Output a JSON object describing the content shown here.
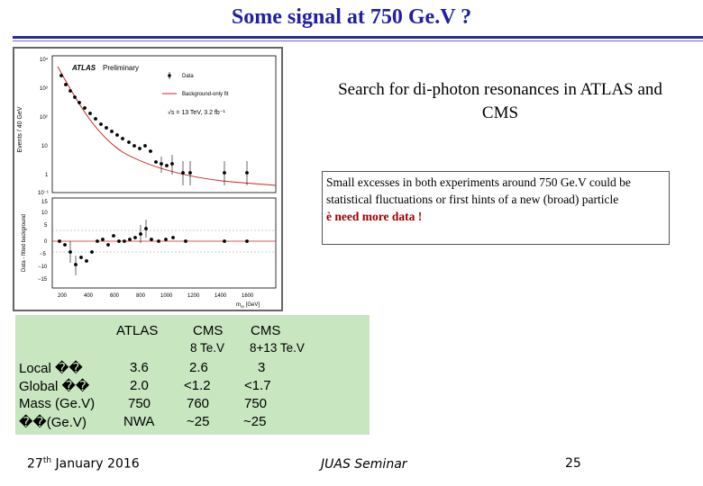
{
  "title": "Some signal at 750 Ge.V ?",
  "subtitle": "Search for di-photon resonances in ATLAS and CMS",
  "excess_text": "Small excesses in both experiments around 750 Ge.V could be statistical fluctuations or first hints of a new (broad) particle",
  "excess_arrow": "è",
  "excess_highlight": "need more data !",
  "table": {
    "headers": [
      "ATLAS",
      "CMS",
      "CMS"
    ],
    "subheaders": [
      "",
      "8 Te.V",
      "8+13 Te.V"
    ],
    "rows": [
      {
        "label": "Local ��",
        "values": [
          "3.6",
          "2.6",
          "3"
        ]
      },
      {
        "label": "Global ��",
        "values": [
          "2.0",
          "<1.2",
          "<1.7"
        ]
      },
      {
        "label": "Mass (Ge.V)",
        "values": [
          "750",
          "760",
          "750"
        ]
      },
      {
        "label": "��(Ge.V)",
        "values": [
          "NWA",
          "~25",
          "~25"
        ]
      }
    ]
  },
  "footer": {
    "date_day": "27",
    "date_suffix": "th",
    "date_rest": " January 2016",
    "seminar": "JUAS Seminar",
    "page": "25"
  },
  "plot": {
    "atlas_label": "ATLAS",
    "prelim_label": "Preliminary",
    "legend_data": "Data",
    "legend_fit": "Background-only fit",
    "energy_label": "√s = 13 TeV, 3.2 fb⁻¹",
    "upper_ylabel": "Events / 40 GeV",
    "lower_ylabel": "Data - fitted background",
    "xlabel": "m",
    "xlabel_sub": "γγ",
    "xlabel_unit": "[GeV]",
    "upper_ticks": [
      "10⁴",
      "10³",
      "10²",
      "10",
      "1",
      "10⁻¹"
    ],
    "lower_ticks": [
      "15",
      "10",
      "5",
      "0",
      "−5",
      "−10",
      "−15"
    ],
    "x_ticks": [
      "200",
      "400",
      "600",
      "800",
      "1000",
      "1200",
      "1400",
      "1600"
    ],
    "fit_color": "#cc2222",
    "data_color": "#000000"
  },
  "colors": {
    "title": "#1f1fa8",
    "table_bg": "#c8e6c0",
    "highlight": "#a00000"
  }
}
